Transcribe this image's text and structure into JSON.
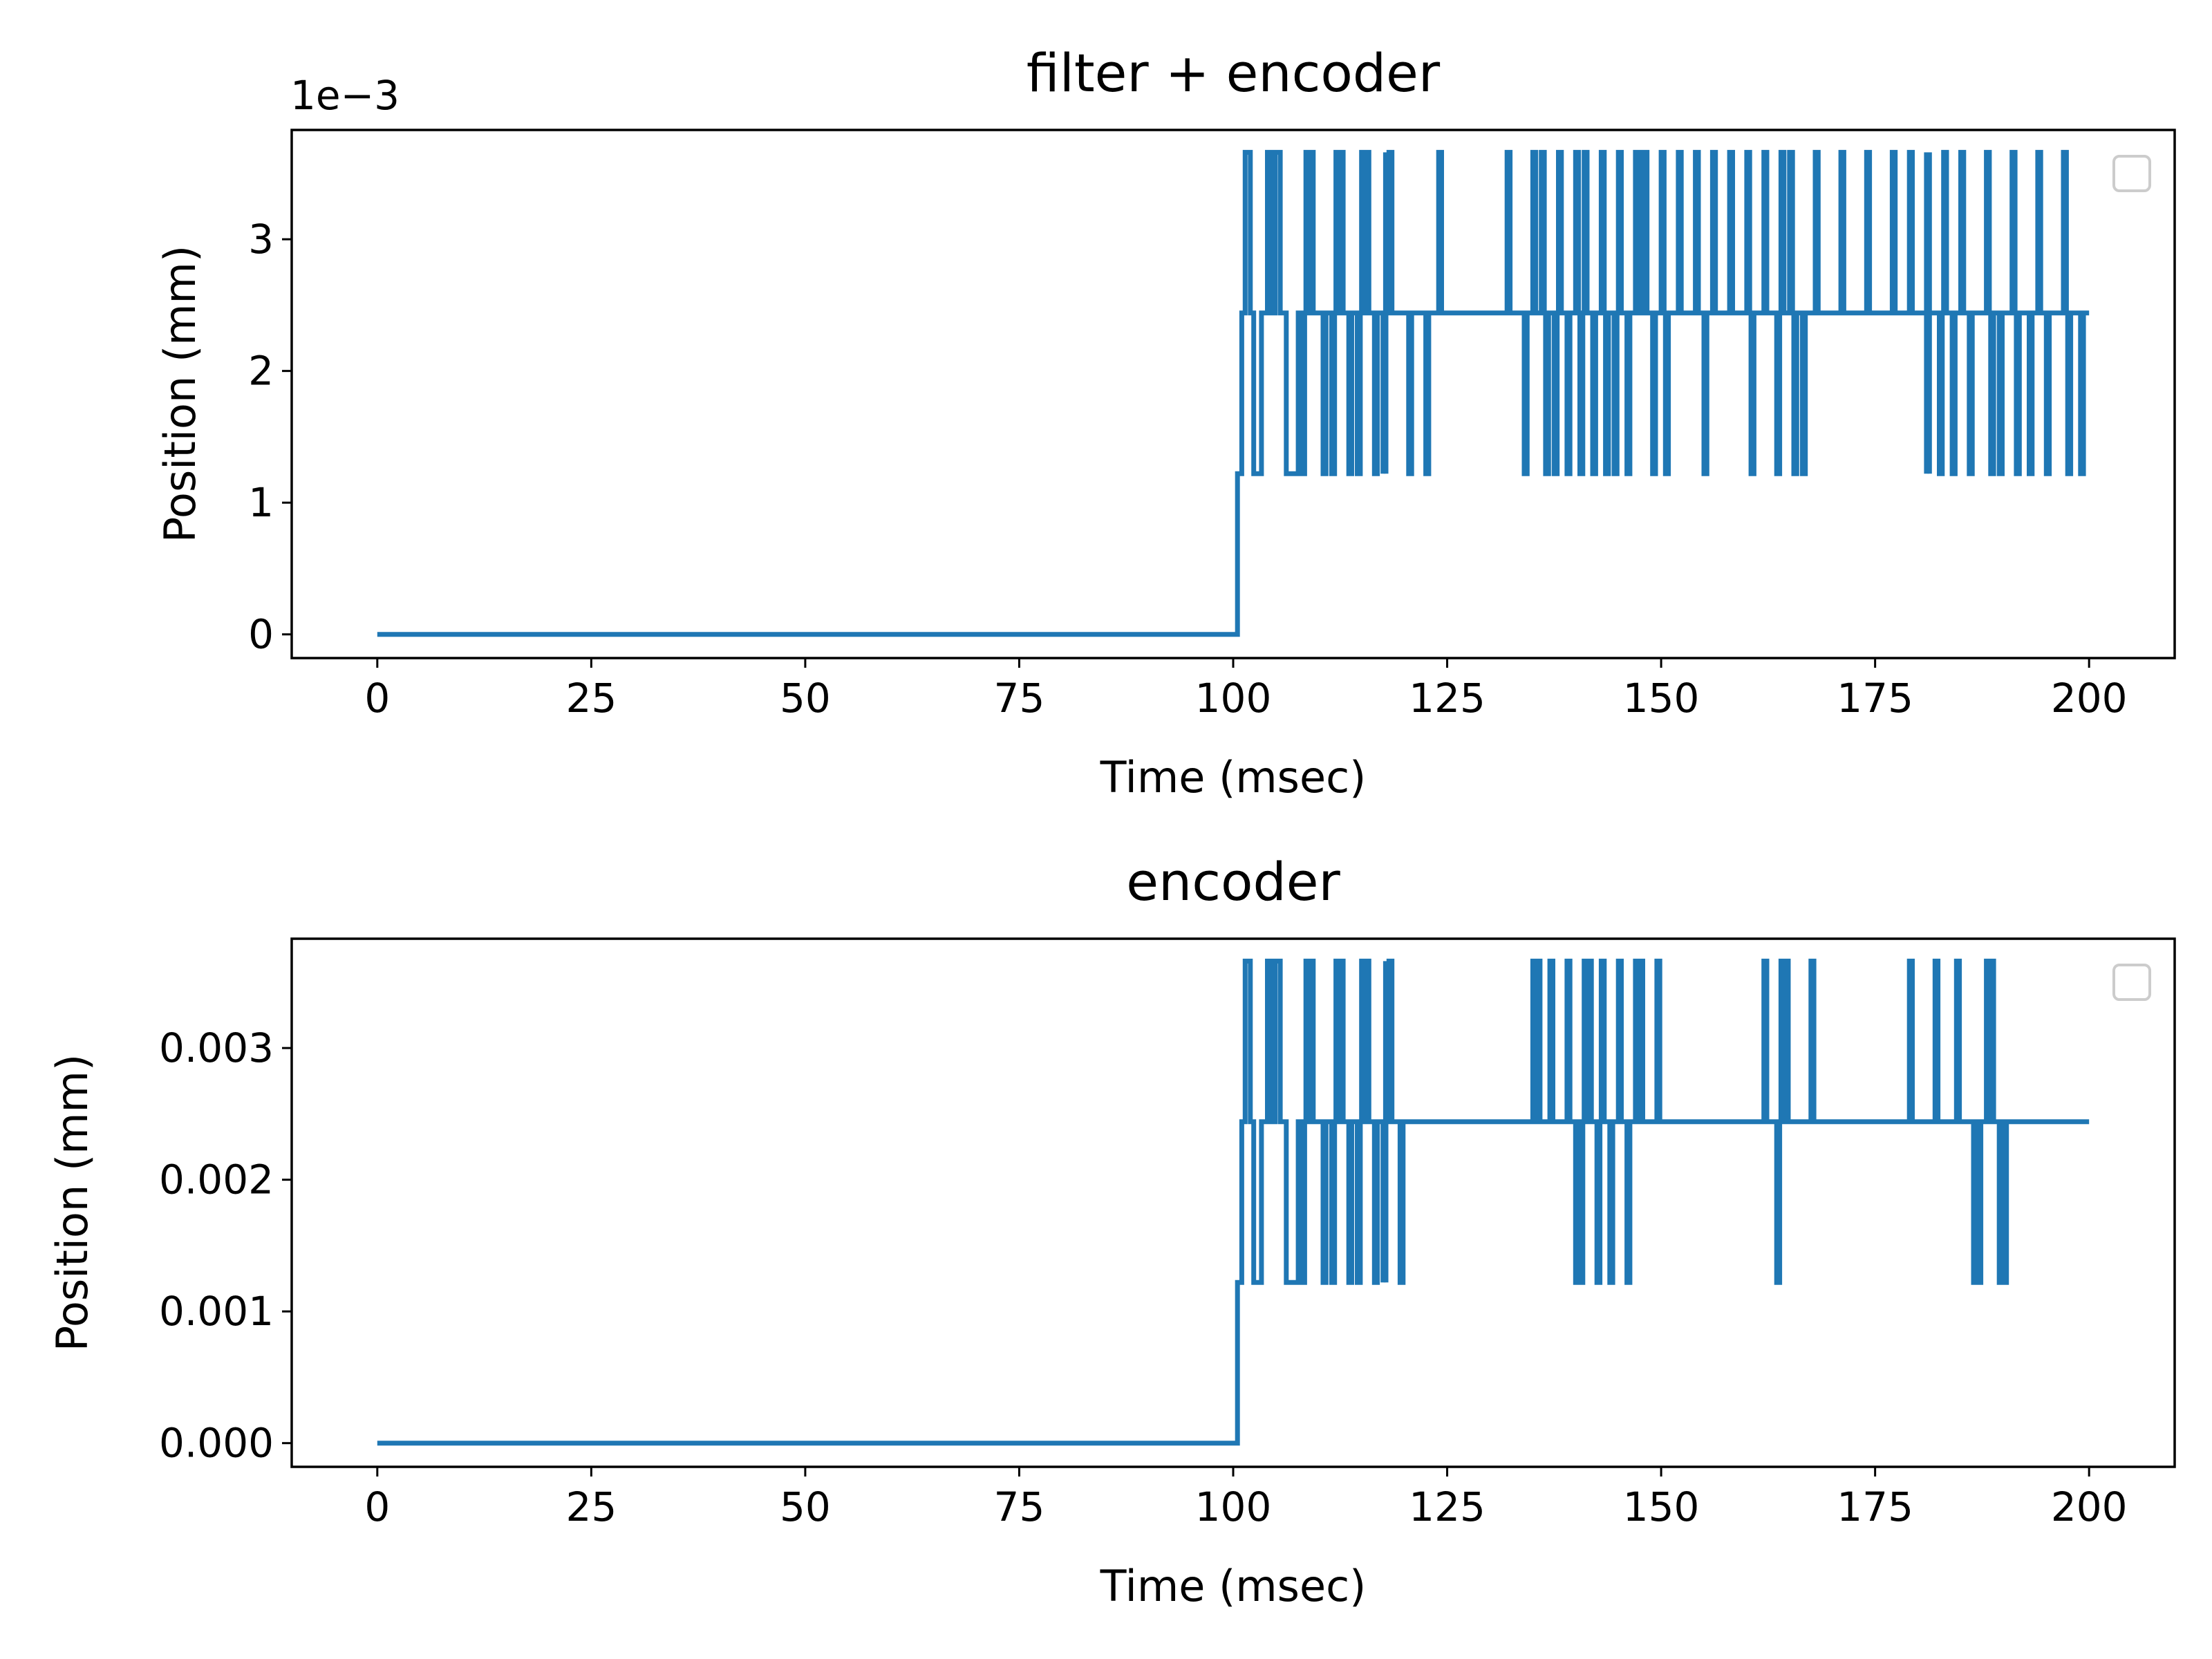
{
  "colors": {
    "line": "#1f77b4",
    "axis": "#000000",
    "legend_border": "#cccccc",
    "background": "#ffffff"
  },
  "chart_data": [
    {
      "type": "line",
      "title": "filter + encoder",
      "xlabel": "Time (msec)",
      "ylabel": "Position (mm)",
      "offset_text": "1e−3",
      "xlim": [
        -10,
        210
      ],
      "ylim": [
        -0.00018,
        0.00383
      ],
      "xticks": [
        0,
        25,
        50,
        75,
        100,
        125,
        150,
        175,
        200
      ],
      "xticklabels": [
        "0",
        "25",
        "50",
        "75",
        "100",
        "125",
        "150",
        "175",
        "200"
      ],
      "yticks": [
        0,
        0.001,
        0.002,
        0.003
      ],
      "yticklabels": [
        "0",
        "1",
        "2",
        "3"
      ],
      "grid": false,
      "legend": {
        "placement": "top-right",
        "entries": []
      },
      "base_level": 0.00244,
      "high_level": 0.00366,
      "low_level": 0.00122,
      "settle_time": 110,
      "initial_steps": {
        "x": [
          0,
          100.5,
          100.5,
          101.0,
          101.0,
          101.4,
          101.4,
          102.0,
          102.0,
          102.4,
          102.4,
          103.3,
          103.3,
          104.0,
          104.0,
          104.4,
          104.4,
          104.9,
          104.9,
          105.5,
          105.5,
          106.2,
          106.2,
          107.6,
          107.6,
          110
        ],
        "y": [
          0,
          0,
          0.00122,
          0.00122,
          0.00244,
          0.00244,
          0.00366,
          0.00366,
          0.00244,
          0.00244,
          0.00122,
          0.00122,
          0.00244,
          0.00244,
          0.00366,
          0.00366,
          0.00244,
          0.00244,
          0.00366,
          0.00366,
          0.00244,
          0.00244,
          0.00122,
          0.00122,
          0.00244,
          0.00244
        ]
      },
      "spikes_up": [
        108.5,
        109.0,
        112.0,
        112.5,
        115.0,
        115.5,
        117.8,
        118.2,
        124.0,
        132.0,
        135.0,
        136.0,
        138.0,
        140.0,
        141.0,
        143.0,
        145.0,
        147.0,
        147.5,
        148.0,
        150.0,
        152.0,
        154.0,
        156.0,
        158.0,
        160.0,
        162.0,
        164.0,
        165.0,
        168.0,
        171.0,
        174.0,
        177.0,
        179.0,
        181.0,
        183.0,
        185.0,
        188.0,
        191.0,
        194.0,
        197.0
      ],
      "spikes_down": [
        108.0,
        110.5,
        111.5,
        113.5,
        114.5,
        116.5,
        117.5,
        120.5,
        122.5,
        134.0,
        136.5,
        137.5,
        139.0,
        140.5,
        142.0,
        143.5,
        144.5,
        146.0,
        149.0,
        150.5,
        155.0,
        160.5,
        163.5,
        165.5,
        166.5,
        181.0,
        182.5,
        184.0,
        186.0,
        188.5,
        189.5,
        191.5,
        193.0,
        195.0,
        197.5,
        199.0
      ],
      "end_time": 200
    },
    {
      "type": "line",
      "title": "encoder",
      "xlabel": "Time (msec)",
      "ylabel": "Position (mm)",
      "xlim": [
        -10,
        210
      ],
      "ylim": [
        -0.00018,
        0.00383
      ],
      "xticks": [
        0,
        25,
        50,
        75,
        100,
        125,
        150,
        175,
        200
      ],
      "xticklabels": [
        "0",
        "25",
        "50",
        "75",
        "100",
        "125",
        "150",
        "175",
        "200"
      ],
      "yticks": [
        0,
        0.001,
        0.002,
        0.003
      ],
      "yticklabels": [
        "0.000",
        "0.001",
        "0.002",
        "0.003"
      ],
      "grid": false,
      "legend": {
        "placement": "top-right",
        "entries": []
      },
      "base_level": 0.00244,
      "high_level": 0.00366,
      "low_level": 0.00122,
      "settle_time": 110,
      "initial_steps": {
        "x": [
          0,
          100.5,
          100.5,
          101.0,
          101.0,
          101.4,
          101.4,
          102.0,
          102.0,
          102.4,
          102.4,
          103.3,
          103.3,
          104.0,
          104.0,
          104.4,
          104.4,
          104.9,
          104.9,
          105.5,
          105.5,
          106.2,
          106.2,
          107.6,
          107.6,
          110
        ],
        "y": [
          0,
          0,
          0.00122,
          0.00122,
          0.00244,
          0.00244,
          0.00366,
          0.00366,
          0.00244,
          0.00244,
          0.00122,
          0.00122,
          0.00244,
          0.00244,
          0.00366,
          0.00366,
          0.00244,
          0.00244,
          0.00366,
          0.00366,
          0.00244,
          0.00244,
          0.00122,
          0.00122,
          0.00244,
          0.00244
        ]
      },
      "spikes_up": [
        108.5,
        109.0,
        112.0,
        112.5,
        115.0,
        115.5,
        117.8,
        118.2,
        135.0,
        135.5,
        137.0,
        139.0,
        141.0,
        141.5,
        143.0,
        145.0,
        147.0,
        147.5,
        149.5,
        162.0,
        164.0,
        164.5,
        167.5,
        179.0,
        182.0,
        184.5,
        188.0,
        188.5
      ],
      "spikes_down": [
        108.0,
        110.5,
        111.5,
        113.5,
        114.5,
        116.5,
        117.5,
        119.5,
        140.0,
        140.5,
        142.5,
        144.0,
        146.0,
        163.5,
        186.5,
        187.0,
        189.5,
        190.0
      ],
      "end_time": 200
    }
  ]
}
